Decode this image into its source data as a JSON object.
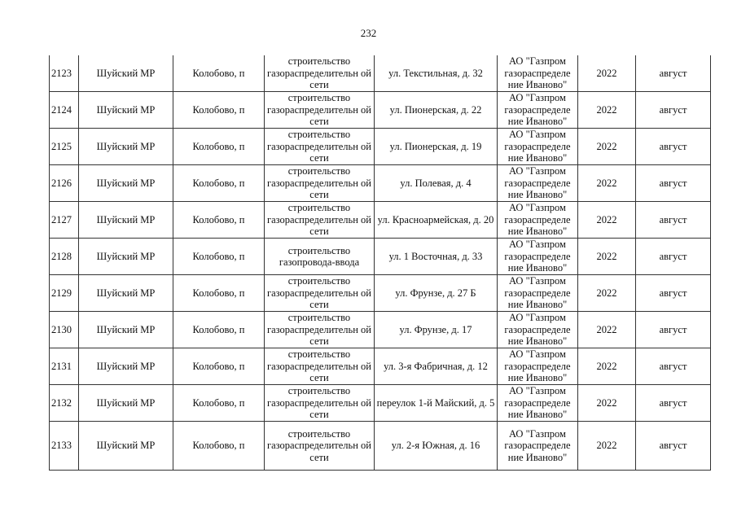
{
  "page_number": "232",
  "rows": [
    {
      "n": "2123",
      "district": "Шуйский МР",
      "locality": "Колобово, п",
      "work": "строительство газораспределительн ой сети",
      "address": "ул. Текстильная, д. 32",
      "org": "АО \"Газпром газораспределе ние Иваново\"",
      "year": "2022",
      "month": "август"
    },
    {
      "n": "2124",
      "district": "Шуйский МР",
      "locality": "Колобово, п",
      "work": "строительство газораспределительн ой сети",
      "address": "ул. Пионерская, д. 22",
      "org": "АО \"Газпром газораспределе ние Иваново\"",
      "year": "2022",
      "month": "август"
    },
    {
      "n": "2125",
      "district": "Шуйский МР",
      "locality": "Колобово, п",
      "work": "строительство газораспределительн ой сети",
      "address": "ул. Пионерская, д. 19",
      "org": "АО \"Газпром газораспределе ние Иваново\"",
      "year": "2022",
      "month": "август"
    },
    {
      "n": "2126",
      "district": "Шуйский МР",
      "locality": "Колобово, п",
      "work": "строительство газораспределительн ой сети",
      "address": "ул. Полевая, д. 4",
      "org": "АО \"Газпром газораспределе ние Иваново\"",
      "year": "2022",
      "month": "август"
    },
    {
      "n": "2127",
      "district": "Шуйский МР",
      "locality": "Колобово, п",
      "work": "строительство газораспределительн ой сети",
      "address": "ул. Красноармейская, д. 20",
      "org": "АО \"Газпром газораспределе ние Иваново\"",
      "year": "2022",
      "month": "август"
    },
    {
      "n": "2128",
      "district": "Шуйский МР",
      "locality": "Колобово, п",
      "work": "строительство газопровода-ввода",
      "address": "ул. 1 Восточная, д. 33",
      "org": "АО \"Газпром газораспределе ние Иваново\"",
      "year": "2022",
      "month": "август"
    },
    {
      "n": "2129",
      "district": "Шуйский МР",
      "locality": "Колобово, п",
      "work": "строительство газораспределительн ой сети",
      "address": "ул. Фрунзе, д. 27 Б",
      "org": "АО \"Газпром газораспределе ние Иваново\"",
      "year": "2022",
      "month": "август"
    },
    {
      "n": "2130",
      "district": "Шуйский МР",
      "locality": "Колобово, п",
      "work": "строительство газораспределительн ой сети",
      "address": "ул. Фрунзе, д. 17",
      "org": "АО \"Газпром газораспределе ние Иваново\"",
      "year": "2022",
      "month": "август"
    },
    {
      "n": "2131",
      "district": "Шуйский МР",
      "locality": "Колобово, п",
      "work": "строительство газораспределительн ой сети",
      "address": "ул. 3-я Фабричная, д. 12",
      "org": "АО \"Газпром газораспределе ние Иваново\"",
      "year": "2022",
      "month": "август"
    },
    {
      "n": "2132",
      "district": "Шуйский МР",
      "locality": "Колобово, п",
      "work": "строительство газораспределительн ой сети",
      "address": "переулок 1-й Майский, д. 5",
      "org": "АО \"Газпром газораспределе ние Иваново\"",
      "year": "2022",
      "month": "август"
    },
    {
      "n": "2133",
      "district": "Шуйский МР",
      "locality": "Колобово, п",
      "work": "строительство газораспределительн ой сети",
      "address": "ул. 2-я Южная, д. 16",
      "org": "АО \"Газпром газораспределе ние Иваново\"",
      "year": "2022",
      "month": "август"
    }
  ]
}
